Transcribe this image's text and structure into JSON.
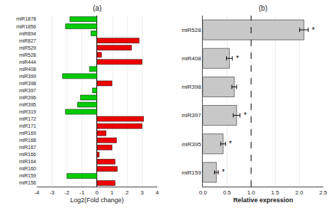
{
  "chart_data": [
    {
      "type": "bar",
      "orientation": "horizontal",
      "title": "(a)",
      "categories": [
        "miR1878",
        "miR1856",
        "miR894",
        "miR827",
        "miR529",
        "miR528",
        "miR444",
        "miR408",
        "miR399",
        "miR398",
        "miR397",
        "miR396",
        "miR395",
        "miR319",
        "miR172",
        "miR171",
        "miR169",
        "miR168",
        "miR167",
        "miR166",
        "miR164",
        "miR160",
        "miR159",
        "miR156"
      ],
      "values": [
        -1.8,
        -2.1,
        -0.4,
        2.8,
        2.3,
        0.3,
        3.0,
        -0.5,
        -2.3,
        1.0,
        -0.3,
        -1.1,
        -1.3,
        -2.1,
        3.1,
        3.0,
        0.6,
        1.3,
        1.0,
        0.15,
        1.2,
        1.35,
        -2.0,
        1.2
      ],
      "colors": [
        "#00cc00",
        "#00cc00",
        "#00cc00",
        "#ee0000",
        "#ee0000",
        "#ee0000",
        "#ee0000",
        "#00cc00",
        "#00cc00",
        "#ee0000",
        "#00cc00",
        "#00cc00",
        "#00cc00",
        "#00cc00",
        "#ee0000",
        "#ee0000",
        "#ee0000",
        "#ee0000",
        "#ee0000",
        "#ee0000",
        "#ee0000",
        "#ee0000",
        "#00cc00",
        "#ee0000"
      ],
      "xlabel": "Log2(Fold change)",
      "xlim": [
        -4,
        4
      ],
      "xticks": [
        -4,
        -3,
        -2,
        -1,
        0,
        1,
        2,
        3,
        4
      ]
    },
    {
      "type": "bar",
      "orientation": "horizontal",
      "title": "(b)",
      "categories": [
        "miR528",
        "miR408",
        "miR398",
        "miR397",
        "miR395",
        "miR159"
      ],
      "values": [
        2.1,
        0.55,
        0.65,
        0.7,
        0.42,
        0.28
      ],
      "errors": [
        0.09,
        0.06,
        0.05,
        0.07,
        0.05,
        0.04
      ],
      "color": "#c8c8c8",
      "xlabel": "Relative expression",
      "xlim": [
        0,
        2.5
      ],
      "xticks": [
        {
          "value": 0,
          "label": "0.0"
        },
        0.5,
        {
          "value": 1,
          "label": "1.0"
        },
        1.5,
        {
          "value": 2,
          "label": "2.0"
        },
        2.5
      ],
      "reference_x": 1.0,
      "annotations": [
        {
          "category": "miR528",
          "text": "*"
        },
        {
          "category": "miR408",
          "text": "*"
        },
        {
          "category": "miR397",
          "text": "*"
        },
        {
          "category": "miR395",
          "text": "*"
        },
        {
          "category": "miR159",
          "text": "*"
        }
      ]
    }
  ]
}
